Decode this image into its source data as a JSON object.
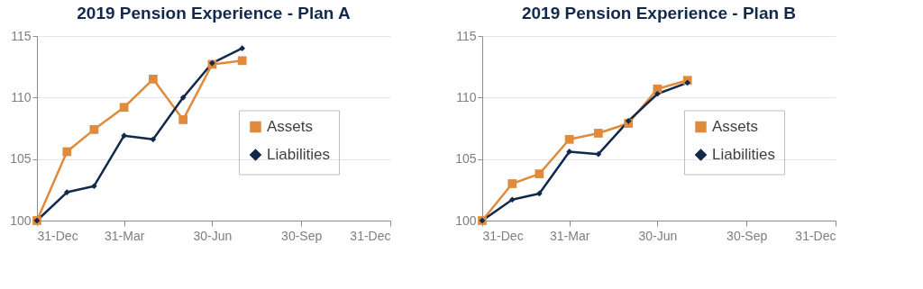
{
  "chart_data": [
    {
      "type": "line",
      "title": "2019 Pension Experience - Plan A",
      "x": [
        "2018-12-31",
        "2019-01-31",
        "2019-02-28",
        "2019-03-31",
        "2019-04-30",
        "2019-05-31",
        "2019-06-30",
        "2019-07-31"
      ],
      "series": [
        {
          "name": "Assets",
          "color": "#e08a3c",
          "marker": "square",
          "values": [
            100,
            105.6,
            107.4,
            109.2,
            111.5,
            108.2,
            112.7,
            113.0
          ]
        },
        {
          "name": "Liabilities",
          "color": "#13294b",
          "marker": "diamond",
          "values": [
            100,
            102.3,
            102.8,
            106.9,
            106.6,
            110.0,
            112.8,
            114.0
          ]
        }
      ],
      "xlim": [
        "2018-12-31",
        "2019-12-31"
      ],
      "xticks": [
        {
          "value": "2018-12-31",
          "label": "31-Dec"
        },
        {
          "value": "2019-03-31",
          "label": "31-Mar"
        },
        {
          "value": "2019-06-30",
          "label": "30-Jun"
        },
        {
          "value": "2019-09-30",
          "label": "30-Sep"
        },
        {
          "value": "2019-12-31",
          "label": "31-Dec"
        }
      ],
      "ylim": [
        100,
        115
      ],
      "yticks": [
        100,
        105,
        110,
        115
      ],
      "grid": "y",
      "legend": "right"
    },
    {
      "type": "line",
      "title": "2019 Pension Experience - Plan B",
      "x": [
        "2018-12-31",
        "2019-01-31",
        "2019-02-28",
        "2019-03-31",
        "2019-04-30",
        "2019-05-31",
        "2019-06-30",
        "2019-07-31"
      ],
      "series": [
        {
          "name": "Assets",
          "color": "#e08a3c",
          "marker": "square",
          "values": [
            100,
            103.0,
            103.8,
            106.6,
            107.1,
            107.9,
            110.7,
            111.4
          ]
        },
        {
          "name": "Liabilities",
          "color": "#13294b",
          "marker": "diamond",
          "values": [
            100,
            101.7,
            102.2,
            105.6,
            105.4,
            108.1,
            110.3,
            111.2
          ]
        }
      ],
      "xlim": [
        "2018-12-31",
        "2019-12-31"
      ],
      "xticks": [
        {
          "value": "2018-12-31",
          "label": "31-Dec"
        },
        {
          "value": "2019-03-31",
          "label": "31-Mar"
        },
        {
          "value": "2019-06-30",
          "label": "30-Jun"
        },
        {
          "value": "2019-09-30",
          "label": "30-Sep"
        },
        {
          "value": "2019-12-31",
          "label": "31-Dec"
        }
      ],
      "ylim": [
        100,
        115
      ],
      "yticks": [
        100,
        105,
        110,
        115
      ],
      "grid": "y",
      "legend": "right"
    }
  ]
}
